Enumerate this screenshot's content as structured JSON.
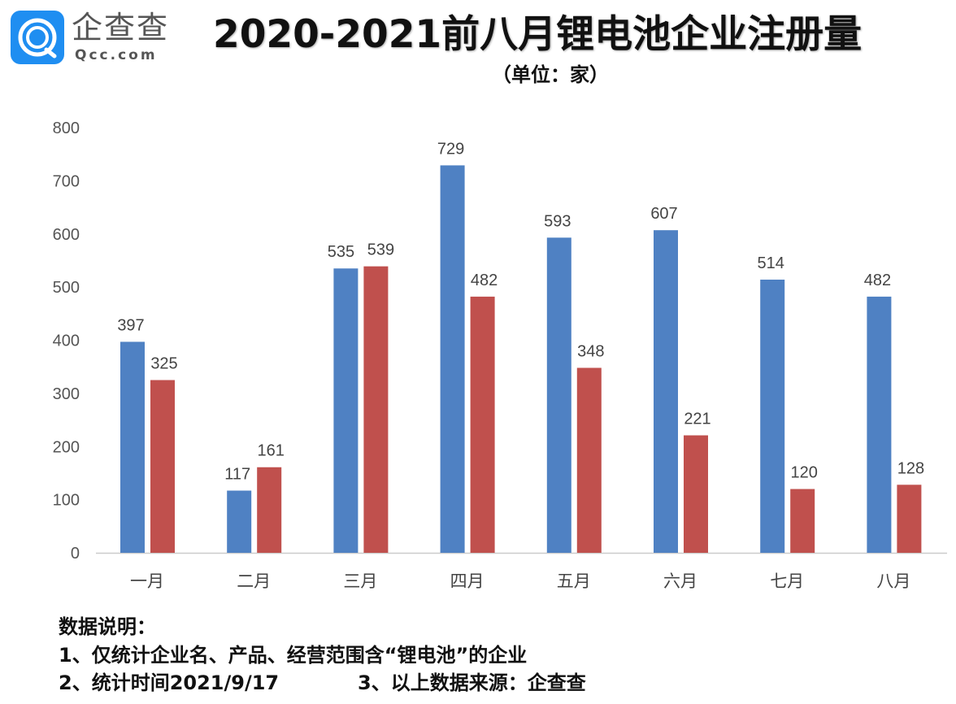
{
  "logo": {
    "cn": "企查查",
    "en": "Qcc.com"
  },
  "chart_data": {
    "type": "bar",
    "title": "2020-2021前八月锂电池企业注册量",
    "subtitle": "（单位：家）",
    "categories": [
      "一月",
      "二月",
      "三月",
      "四月",
      "五月",
      "六月",
      "七月",
      "八月"
    ],
    "series": [
      {
        "color": "#4f81c3",
        "values": [
          397,
          117,
          535,
          729,
          593,
          607,
          514,
          482
        ]
      },
      {
        "color": "#c0504d",
        "values": [
          325,
          161,
          539,
          482,
          348,
          221,
          120,
          128
        ]
      }
    ],
    "ylim": [
      0,
      800
    ],
    "yticks": [
      "0",
      "100",
      "200",
      "300",
      "400",
      "500",
      "600",
      "700",
      "800"
    ],
    "grid": false,
    "legend": "none"
  },
  "notes": {
    "heading": "数据说明：",
    "line1": "1、仅统计企业名、产品、经营范围含“锂电池”的企业",
    "line2a": "2、统计时间2021/9/17",
    "line2b": "3、以上数据来源：企查查"
  }
}
